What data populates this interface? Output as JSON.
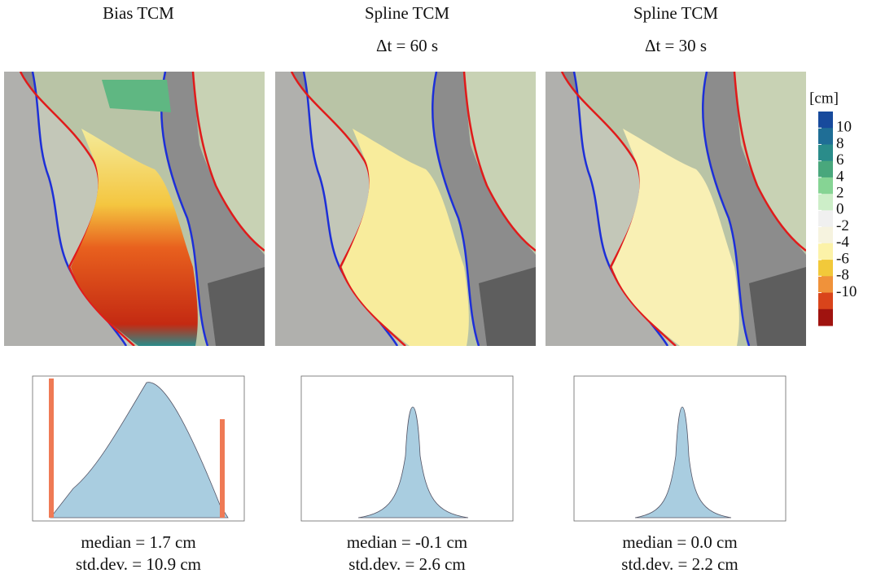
{
  "columns": [
    {
      "title": "Bias TCM",
      "caption": [
        "median = 1.7 cm",
        "std.dev. = 10.9 cm"
      ]
    },
    {
      "title": "Spline TCM",
      "subtitle": "Δt = 60 s",
      "caption": [
        "median = -0.1 cm",
        "std.dev. = 2.6 cm"
      ]
    },
    {
      "title": "Spline TCM",
      "subtitle": "Δt = 30 s",
      "caption": [
        "median = 0.0 cm",
        "std.dev. = 2.2 cm"
      ]
    }
  ],
  "colorbar": {
    "unit": "[cm]",
    "levels": [
      10,
      8,
      6,
      4,
      2,
      0,
      -2,
      -4,
      -6,
      -8,
      -10
    ],
    "colors": [
      "#174a9c",
      "#1f6e96",
      "#2a8c8a",
      "#49a77c",
      "#86d494",
      "#cdeec8",
      "#f0f0f0",
      "#f6f3df",
      "#fcf2a8",
      "#f2c93a",
      "#f0923a",
      "#d9441b",
      "#a0130f"
    ]
  }
}
